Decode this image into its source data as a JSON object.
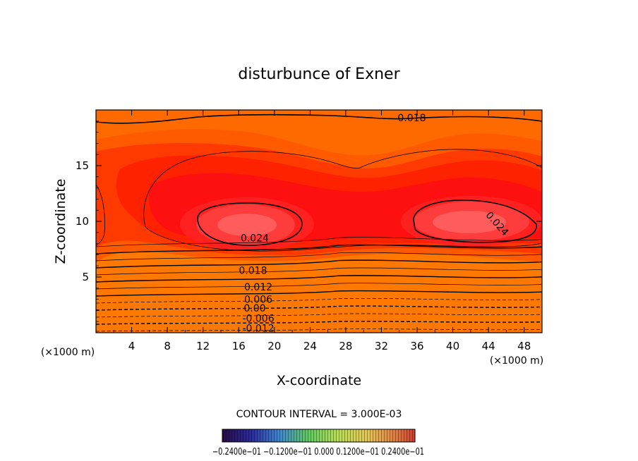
{
  "chart_data": {
    "type": "contour",
    "title": "disturbunce of Exner",
    "xlabel": "X-coordinate",
    "ylabel": "Z-coordinate",
    "x_unit": "(×1000 m)",
    "x_unit_right": "(×1000 m)",
    "xlim": [
      0,
      50
    ],
    "ylim": [
      0,
      20
    ],
    "xticks": [
      4,
      8,
      12,
      16,
      20,
      24,
      28,
      32,
      36,
      40,
      44,
      48
    ],
    "yticks": [
      5,
      10,
      15
    ],
    "contour_interval_text": "CONTOUR INTERVAL = 3.000E-03",
    "colorbar_labels_text": "−0.2400e−01  −0.1200e−01  0.000  0.1200e−01  0.2400e−01",
    "colorbar_range": [
      -0.024,
      0.024
    ],
    "contour_labels": [
      {
        "text": "0.018",
        "x": 35.4,
        "z": 19.3
      },
      {
        "text": "0.024",
        "x": 17.8,
        "z": 8.5
      },
      {
        "text": "0.024",
        "x": 45.0,
        "z": 9.8
      },
      {
        "text": "0.018",
        "x": 17.6,
        "z": 5.6
      },
      {
        "text": "0.012",
        "x": 18.2,
        "z": 4.1
      },
      {
        "text": "0.006",
        "x": 18.2,
        "z": 3.0
      },
      {
        "text": "0.00",
        "x": 17.8,
        "z": 2.2
      },
      {
        "text": "-0.006",
        "x": 18.2,
        "z": 1.3
      },
      {
        "text": "-0.012",
        "x": 18.2,
        "z": 0.4
      }
    ],
    "colors": {
      "low": "#1e90ff",
      "mid": "#33cc33",
      "high_yellow": "#e6ff1a",
      "orange": "#ff8c00",
      "red": "#ff1a1a",
      "core": "#ff5c5c"
    }
  }
}
